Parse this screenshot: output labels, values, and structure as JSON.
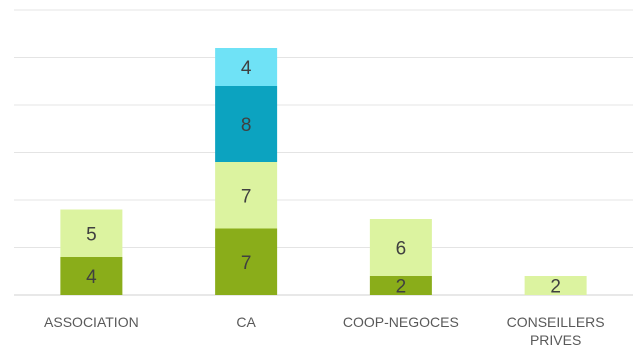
{
  "chart_data": {
    "type": "bar",
    "stacked": true,
    "categories": [
      "ASSOCIATION",
      "CA",
      "COOP-NEGOCES",
      "CONSEILLERS PRIVES"
    ],
    "category_label_lines": [
      [
        "ASSOCIATION"
      ],
      [
        "CA"
      ],
      [
        "COOP-NEGOCES"
      ],
      [
        "CONSEILLERS",
        "PRIVES"
      ]
    ],
    "series": [
      {
        "values": [
          4,
          7,
          2,
          0
        ],
        "color": "#8aad1a"
      },
      {
        "values": [
          5,
          7,
          6,
          2
        ],
        "color": "#dcf3a0"
      },
      {
        "values": [
          0,
          8,
          0,
          0
        ],
        "color": "#0ca3c0"
      },
      {
        "values": [
          0,
          4,
          0,
          0
        ],
        "color": "#6fe2f6"
      }
    ],
    "ylim": [
      0,
      30
    ],
    "grid": true,
    "title": "",
    "xlabel": "",
    "ylabel": ""
  }
}
